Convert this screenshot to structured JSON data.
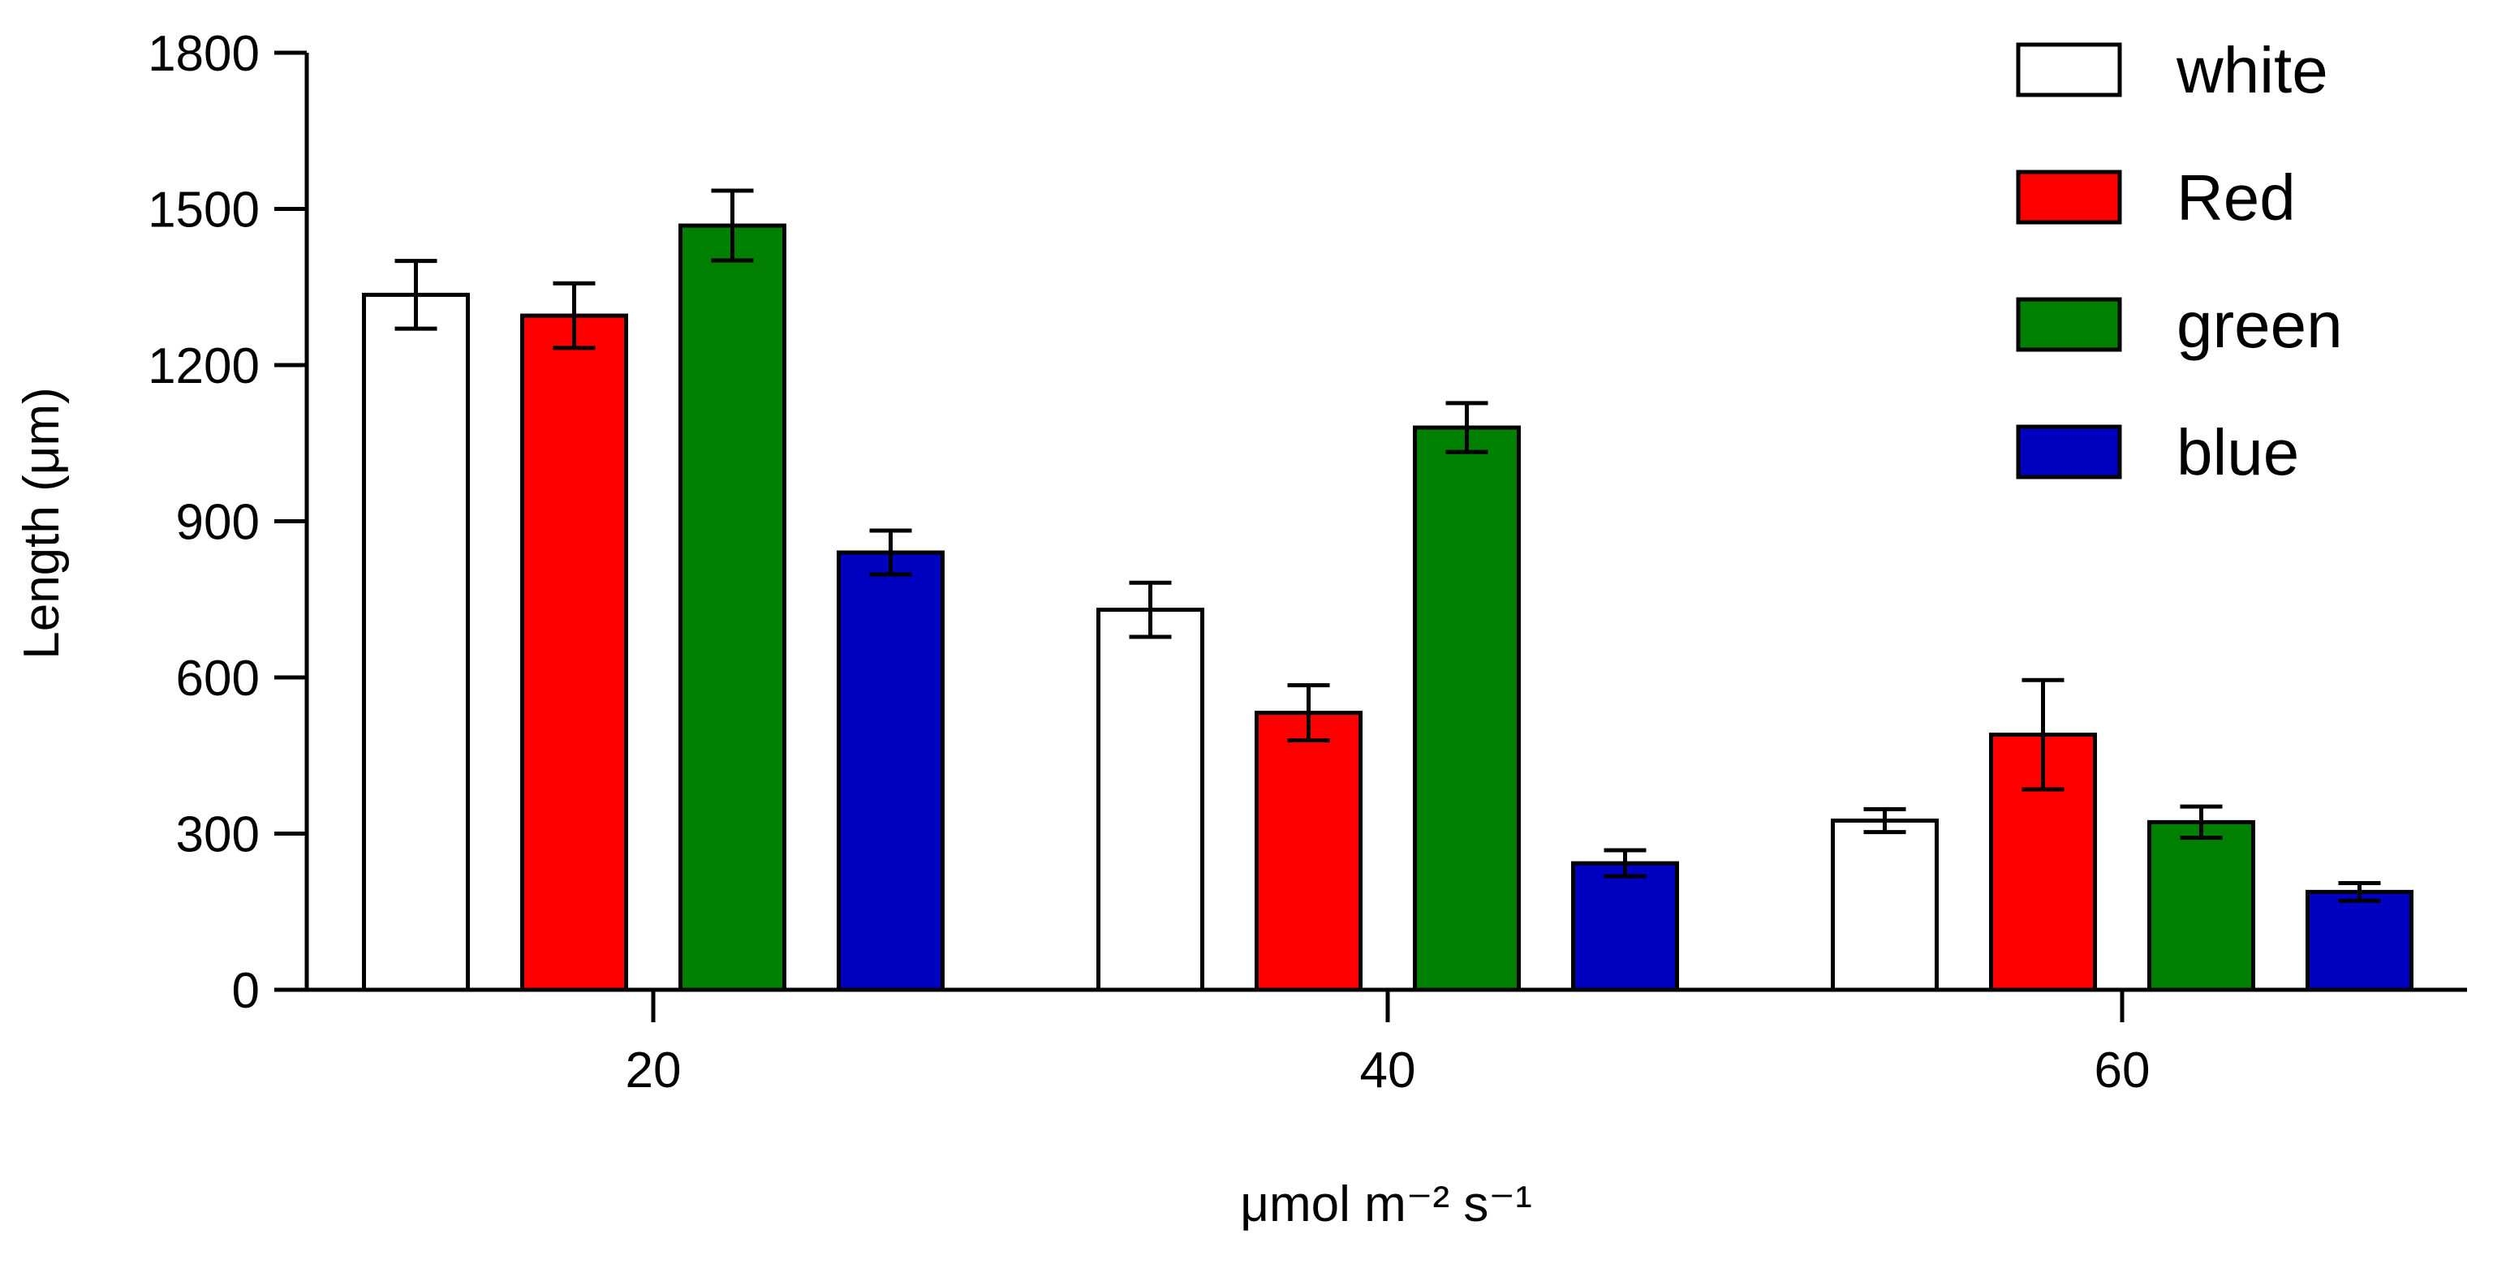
{
  "chart_data": {
    "type": "bar",
    "title": "",
    "xlabel": "μmol m⁻² s⁻¹",
    "ylabel": "Length (μm)",
    "ylim": [
      0,
      1800
    ],
    "yticks": [
      0,
      300,
      600,
      900,
      1200,
      1500,
      1800
    ],
    "categories": [
      "20",
      "40",
      "60"
    ],
    "legend_position": "top-right",
    "grid": false,
    "error_bars": true,
    "series": [
      {
        "name": "white",
        "color": "#ffffff",
        "values": [
          1335,
          730,
          325
        ],
        "errors": [
          65,
          52,
          22
        ]
      },
      {
        "name": "Red",
        "color": "#ff0000",
        "values": [
          1295,
          532,
          490
        ],
        "errors": [
          62,
          53,
          105
        ]
      },
      {
        "name": "green",
        "color": "#008000",
        "values": [
          1468,
          1080,
          322
        ],
        "errors": [
          67,
          47,
          30
        ]
      },
      {
        "name": "blue",
        "color": "#0000c0",
        "values": [
          840,
          243,
          188
        ],
        "errors": [
          42,
          25,
          17
        ]
      }
    ]
  }
}
